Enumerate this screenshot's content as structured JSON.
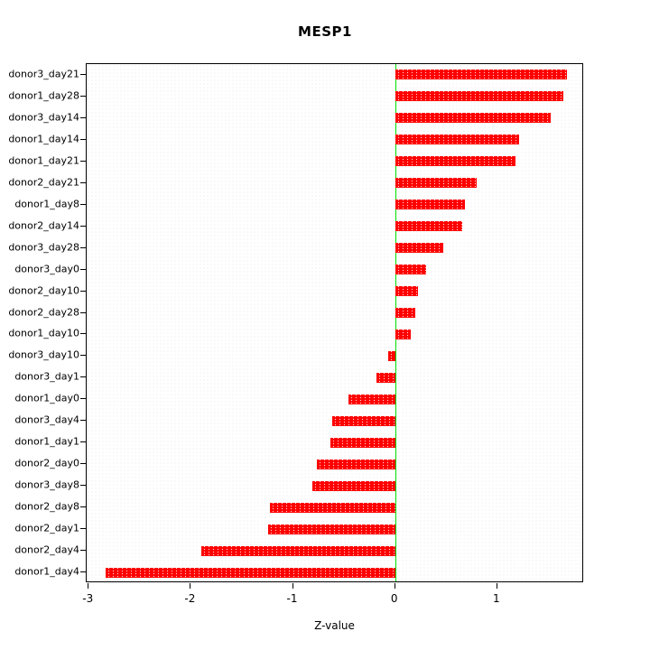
{
  "title": "MESP1",
  "xlabel": "Z-value",
  "chart_data": {
    "type": "bar",
    "orientation": "horizontal",
    "title": "MESP1",
    "xlabel": "Z-value",
    "ylabel": "",
    "bar_color": "#ff0000",
    "zero_line_color": "#00e000",
    "grid": "dotted",
    "legend": "none",
    "xlim": [
      -3.02,
      1.85
    ],
    "xticks": [
      -3,
      -2,
      -1,
      0,
      1
    ],
    "xtick_labels": [
      "-3",
      "-2",
      "-1",
      "0",
      "1"
    ],
    "categories": [
      "donor3_day21",
      "donor1_day28",
      "donor3_day14",
      "donor1_day14",
      "donor1_day21",
      "donor2_day21",
      "donor1_day8",
      "donor2_day14",
      "donor3_day28",
      "donor3_day0",
      "donor2_day10",
      "donor2_day28",
      "donor1_day10",
      "donor3_day10",
      "donor3_day1",
      "donor1_day0",
      "donor3_day4",
      "donor1_day1",
      "donor2_day0",
      "donor3_day8",
      "donor2_day8",
      "donor2_day1",
      "donor2_day4",
      "donor1_day4"
    ],
    "values": [
      1.68,
      1.65,
      1.52,
      1.21,
      1.18,
      0.8,
      0.68,
      0.66,
      0.47,
      0.3,
      0.22,
      0.2,
      0.15,
      -0.07,
      -0.18,
      -0.46,
      -0.62,
      -0.63,
      -0.77,
      -0.81,
      -1.23,
      -1.24,
      -1.9,
      -2.83
    ]
  }
}
